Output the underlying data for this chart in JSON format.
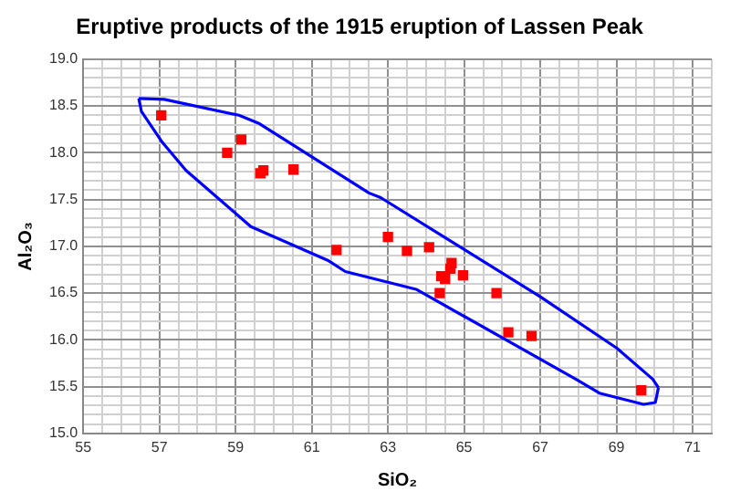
{
  "chart_data": {
    "type": "scatter",
    "title": "Eruptive products of the 1915 eruption of Lassen Peak",
    "xlabel": "SiO₂",
    "ylabel": "Al₂O₃",
    "xlim": [
      55,
      71.5
    ],
    "xticks": [
      55,
      {
        "value": 55.5,
        "label": null
      },
      {
        "value": 56,
        "label": null
      },
      {
        "value": 56.5,
        "label": null
      },
      57,
      {
        "value": 57.5,
        "label": null
      },
      {
        "value": 58,
        "label": null
      },
      {
        "value": 58.5,
        "label": null
      },
      59,
      {
        "value": 59.5,
        "label": null
      },
      {
        "value": 60,
        "label": null
      },
      {
        "value": 60.5,
        "label": null
      },
      61,
      {
        "value": 61.5,
        "label": null
      },
      {
        "value": 62,
        "label": null
      },
      {
        "value": 62.5,
        "label": null
      },
      63,
      {
        "value": 63.5,
        "label": null
      },
      {
        "value": 64,
        "label": null
      },
      {
        "value": 64.5,
        "label": null
      },
      65,
      {
        "value": 65.5,
        "label": null
      },
      {
        "value": 66,
        "label": null
      },
      {
        "value": 66.5,
        "label": null
      },
      67,
      {
        "value": 67.5,
        "label": null
      },
      {
        "value": 68,
        "label": null
      },
      {
        "value": 68.5,
        "label": null
      },
      69,
      {
        "value": 69.5,
        "label": null
      },
      {
        "value": 70,
        "label": null
      },
      {
        "value": 70.5,
        "label": null
      },
      71,
      {
        "value": 71.5,
        "label": null
      }
    ],
    "ylim": [
      15,
      19
    ],
    "yticks": [
      {
        "value": 15,
        "label": "15.0"
      },
      {
        "value": 15.1,
        "label": null
      },
      {
        "value": 15.2,
        "label": null
      },
      {
        "value": 15.3,
        "label": null
      },
      {
        "value": 15.4,
        "label": null
      },
      15.5,
      {
        "value": 15.6,
        "label": null
      },
      {
        "value": 15.7,
        "label": null
      },
      {
        "value": 15.8,
        "label": null
      },
      {
        "value": 15.9,
        "label": null
      },
      {
        "value": 16,
        "label": "16.0"
      },
      {
        "value": 16.1,
        "label": null
      },
      {
        "value": 16.2,
        "label": null
      },
      {
        "value": 16.3,
        "label": null
      },
      {
        "value": 16.4,
        "label": null
      },
      16.5,
      {
        "value": 16.6,
        "label": null
      },
      {
        "value": 16.7,
        "label": null
      },
      {
        "value": 16.8,
        "label": null
      },
      {
        "value": 16.9,
        "label": null
      },
      {
        "value": 17,
        "label": "17.0"
      },
      {
        "value": 17.1,
        "label": null
      },
      {
        "value": 17.2,
        "label": null
      },
      {
        "value": 17.3,
        "label": null
      },
      {
        "value": 17.4,
        "label": null
      },
      17.5,
      {
        "value": 17.6,
        "label": null
      },
      {
        "value": 17.7,
        "label": null
      },
      {
        "value": 17.8,
        "label": null
      },
      {
        "value": 17.9,
        "label": null
      },
      {
        "value": 18,
        "label": "18.0"
      },
      {
        "value": 18.1,
        "label": null
      },
      {
        "value": 18.2,
        "label": null
      },
      {
        "value": 18.3,
        "label": null
      },
      {
        "value": 18.4,
        "label": null
      },
      18.5,
      {
        "value": 18.6,
        "label": null
      },
      {
        "value": 18.7,
        "label": null
      },
      {
        "value": 18.8,
        "label": null
      },
      {
        "value": 18.9,
        "label": null
      },
      {
        "value": 19,
        "label": "19.0"
      }
    ],
    "grid": true,
    "legend": false,
    "series": [
      {
        "type": "line",
        "marker": "none",
        "color": "#0000ff",
        "x": [
          56.46,
          57.13,
          59.09,
          59.63,
          62.5,
          62.81,
          67.0,
          69.01,
          69.95,
          70.1
        ],
        "values": [
          18.58,
          18.57,
          18.4,
          18.31,
          17.57,
          17.52,
          16.46,
          15.91,
          15.58,
          15.49
        ]
      },
      {
        "type": "line",
        "marker": "none",
        "color": "#0000ff",
        "x": [
          56.46,
          56.53,
          57.08,
          57.7,
          59.4,
          61.42,
          61.88,
          63.74,
          67.93,
          68.55,
          69.71,
          70.02,
          70.1
        ],
        "values": [
          18.58,
          18.44,
          18.11,
          17.81,
          17.21,
          16.85,
          16.73,
          16.54,
          15.58,
          15.43,
          15.31,
          15.33,
          15.49
        ]
      },
      {
        "type": "scatter",
        "marker": "square",
        "color": "#ff0000",
        "x": [
          57.05,
          58.78,
          59.15,
          59.65,
          59.73,
          60.52,
          61.65,
          63.0,
          63.5,
          64.08,
          64.67,
          64.64,
          64.4,
          64.5,
          64.97,
          64.36,
          65.85,
          66.16,
          66.77,
          69.65
        ],
        "values": [
          18.4,
          18.0,
          18.14,
          17.78,
          17.81,
          17.82,
          16.96,
          17.1,
          16.95,
          16.99,
          16.82,
          16.76,
          16.68,
          16.65,
          16.69,
          16.5,
          16.5,
          16.08,
          16.04,
          15.46
        ]
      }
    ]
  }
}
